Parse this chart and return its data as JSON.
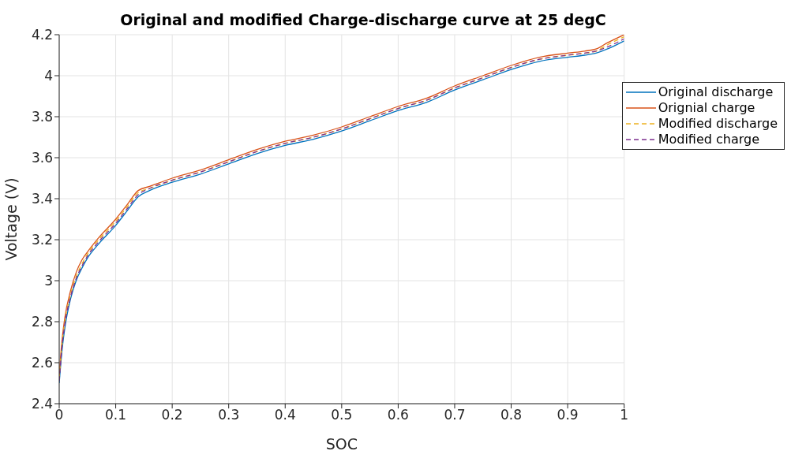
{
  "chart_data": {
    "type": "line",
    "title": "Original and modified Charge-discharge curve at 25 degC",
    "xlabel": "SOC",
    "ylabel": "Voltage (V)",
    "x": [
      0,
      0.005,
      0.01,
      0.02,
      0.03,
      0.04,
      0.05,
      0.07,
      0.1,
      0.12,
      0.14,
      0.16,
      0.2,
      0.25,
      0.3,
      0.35,
      0.4,
      0.45,
      0.5,
      0.55,
      0.6,
      0.65,
      0.7,
      0.75,
      0.8,
      0.85,
      0.9,
      0.93,
      0.95,
      0.97,
      1.0
    ],
    "series": [
      {
        "name": "Original discharge",
        "color": "#0072bd",
        "line_style": "solid",
        "values": [
          2.5,
          2.66,
          2.77,
          2.91,
          3.0,
          3.06,
          3.11,
          3.18,
          3.27,
          3.34,
          3.41,
          3.44,
          3.48,
          3.52,
          3.57,
          3.62,
          3.66,
          3.69,
          3.73,
          3.78,
          3.83,
          3.87,
          3.93,
          3.98,
          4.03,
          4.07,
          4.09,
          4.1,
          4.11,
          4.13,
          4.17
        ]
      },
      {
        "name": "Orignial charge",
        "color": "#d95319",
        "line_style": "solid",
        "values": [
          2.54,
          2.71,
          2.82,
          2.95,
          3.04,
          3.1,
          3.14,
          3.21,
          3.3,
          3.37,
          3.44,
          3.46,
          3.5,
          3.54,
          3.59,
          3.64,
          3.68,
          3.71,
          3.75,
          3.8,
          3.85,
          3.89,
          3.95,
          4.0,
          4.05,
          4.09,
          4.11,
          4.12,
          4.13,
          4.16,
          4.2
        ]
      },
      {
        "name": "Modified discharge",
        "color": "#edb120",
        "line_style": "dashed",
        "values": [
          2.52,
          2.69,
          2.8,
          2.93,
          3.02,
          3.08,
          3.13,
          3.2,
          3.29,
          3.36,
          3.43,
          3.45,
          3.49,
          3.53,
          3.58,
          3.63,
          3.67,
          3.7,
          3.74,
          3.79,
          3.84,
          3.88,
          3.94,
          3.99,
          4.04,
          4.08,
          4.1,
          4.11,
          4.12,
          4.15,
          4.19
        ]
      },
      {
        "name": "Modified charge",
        "color": "#7e2f8e",
        "line_style": "dashed",
        "values": [
          2.51,
          2.68,
          2.79,
          2.92,
          3.01,
          3.07,
          3.12,
          3.19,
          3.28,
          3.35,
          3.42,
          3.45,
          3.49,
          3.53,
          3.58,
          3.63,
          3.67,
          3.7,
          3.74,
          3.79,
          3.84,
          3.88,
          3.94,
          3.99,
          4.04,
          4.08,
          4.1,
          4.11,
          4.12,
          4.14,
          4.18
        ]
      }
    ],
    "xlim": [
      0,
      1
    ],
    "xticks": [
      0,
      0.1,
      0.2,
      0.3,
      0.4,
      0.5,
      0.6,
      0.7,
      0.8,
      0.9,
      1
    ],
    "ylim": [
      2.4,
      4.2
    ],
    "yticks": [
      2.4,
      2.6,
      2.8,
      3,
      3.2,
      3.4,
      3.6,
      3.8,
      4,
      4.2
    ],
    "grid": true,
    "legend": "top right",
    "marker": "none"
  }
}
